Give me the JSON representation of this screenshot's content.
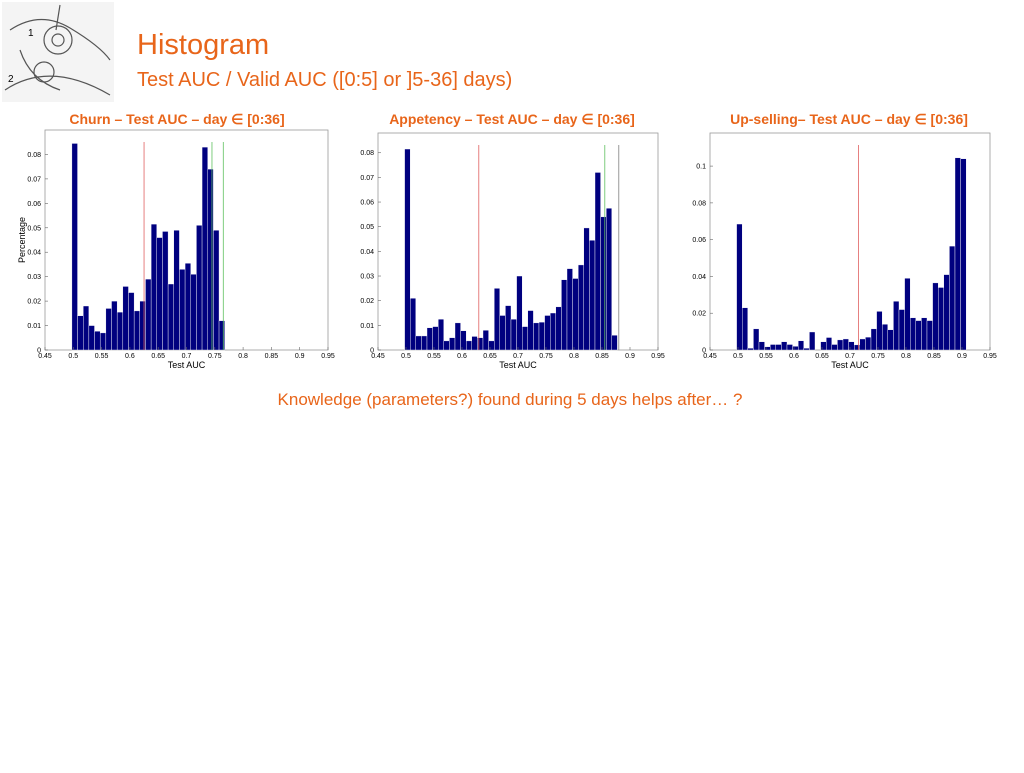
{
  "title": "Histogram",
  "subtitle": "Test AUC / Valid AUC ([0:5] or ]5-36] days)",
  "note": "Knowledge (parameters?) found during 5 days helps after… ?",
  "chart_data": [
    {
      "type": "histogram",
      "title": "Churn – Test AUC – day ∈ [0:36]",
      "x_label": "Test AUC",
      "y_label": "Percentage",
      "color": "#00007f",
      "bins": [
        0.4975,
        0.5075,
        0.5175,
        0.5275,
        0.5375,
        0.5475,
        0.5575,
        0.5675,
        0.5775,
        0.5875,
        0.5975,
        0.6075,
        0.6175,
        0.6275,
        0.6375,
        0.6475,
        0.6575,
        0.6675,
        0.6775,
        0.6875,
        0.6975,
        0.7075,
        0.7175,
        0.7275,
        0.7375,
        0.7475,
        0.7575,
        0.7675
      ],
      "values": [
        0.0845,
        0.014,
        0.018,
        0.01,
        0.0077,
        0.007,
        0.017,
        0.02,
        0.0155,
        0.026,
        0.0235,
        0.016,
        0.02,
        0.029,
        0.0515,
        0.046,
        0.0485,
        0.027,
        0.049,
        0.033,
        0.0355,
        0.031,
        0.051,
        0.083,
        0.074,
        0.049,
        0.012
      ],
      "xlim": [
        0.45,
        0.95
      ],
      "xticks": [
        0.45,
        0.5,
        0.55,
        0.6,
        0.65,
        0.7,
        0.75,
        0.8,
        0.85,
        0.9,
        0.95
      ],
      "ylim": [
        0,
        0.09
      ],
      "yticks": [
        0,
        0.01,
        0.02,
        0.03,
        0.04,
        0.05,
        0.06,
        0.07,
        0.08
      ],
      "reference_lines": [
        {
          "value": 0.625,
          "color": "#e06060"
        },
        {
          "value": 0.745,
          "color": "#60c060"
        },
        {
          "value": 0.765,
          "color": "#60c060"
        }
      ]
    },
    {
      "type": "histogram",
      "title": "Appetency – Test  AUC – day ∈ [0:36]",
      "x_label": "Test AUC",
      "color": "#00007f",
      "bins": [
        0.4975,
        0.5075,
        0.5175,
        0.5275,
        0.5375,
        0.5475,
        0.5575,
        0.5675,
        0.5775,
        0.5875,
        0.5975,
        0.6075,
        0.6175,
        0.6275,
        0.6375,
        0.6475,
        0.6575,
        0.6675,
        0.6775,
        0.6875,
        0.6975,
        0.7075,
        0.7175,
        0.7275,
        0.7375,
        0.7475,
        0.7575,
        0.7675,
        0.7775,
        0.7875,
        0.7975,
        0.8075,
        0.8175,
        0.8275,
        0.8375,
        0.8475,
        0.8575,
        0.8675,
        0.8775
      ],
      "values": [
        0.0815,
        0.021,
        0.0057,
        0.0057,
        0.009,
        0.0095,
        0.0125,
        0.0037,
        0.005,
        0.011,
        0.0078,
        0.0037,
        0.0055,
        0.005,
        0.008,
        0.0037,
        0.025,
        0.014,
        0.018,
        0.0125,
        0.03,
        0.0095,
        0.016,
        0.011,
        0.0113,
        0.014,
        0.015,
        0.0175,
        0.0285,
        0.033,
        0.029,
        0.0345,
        0.0495,
        0.0445,
        0.072,
        0.054,
        0.0575,
        0.006
      ],
      "xlim": [
        0.45,
        0.95
      ],
      "xticks": [
        0.45,
        0.5,
        0.55,
        0.6,
        0.65,
        0.7,
        0.75,
        0.8,
        0.85,
        0.9,
        0.95
      ],
      "ylim": [
        0,
        0.088
      ],
      "yticks": [
        0,
        0.01,
        0.02,
        0.03,
        0.04,
        0.05,
        0.06,
        0.07,
        0.08
      ],
      "reference_lines": [
        {
          "value": 0.63,
          "color": "#e06060"
        },
        {
          "value": 0.855,
          "color": "#60c060"
        },
        {
          "value": 0.88,
          "color": "#808080"
        }
      ]
    },
    {
      "type": "histogram",
      "title": "Up-selling– Test AUC – day ∈ [0:36]",
      "x_label": "Test AUC",
      "color": "#00007f",
      "bins": [
        0.4975,
        0.5075,
        0.5175,
        0.5275,
        0.5375,
        0.5475,
        0.5575,
        0.5675,
        0.5775,
        0.5875,
        0.5975,
        0.6075,
        0.6175,
        0.6275,
        0.6375,
        0.6475,
        0.6575,
        0.6675,
        0.6775,
        0.6875,
        0.6975,
        0.7075,
        0.7175,
        0.7275,
        0.7375,
        0.7475,
        0.7575,
        0.7675,
        0.7775,
        0.7875,
        0.7975,
        0.8075,
        0.8175,
        0.8275,
        0.8375,
        0.8475,
        0.8575,
        0.8675,
        0.8775,
        0.8875,
        0.8975,
        0.9075
      ],
      "values": [
        0.0685,
        0.023,
        0.001,
        0.0115,
        0.0045,
        0.0018,
        0.003,
        0.003,
        0.0045,
        0.003,
        0.002,
        0.005,
        0.001,
        0.0098,
        0,
        0.0045,
        0.0068,
        0.003,
        0.0055,
        0.006,
        0.0045,
        0.0028,
        0.006,
        0.007,
        0.0115,
        0.021,
        0.014,
        0.011,
        0.0265,
        0.022,
        0.039,
        0.0175,
        0.016,
        0.0175,
        0.016,
        0.0365,
        0.034,
        0.041,
        0.0565,
        0.1045,
        0.104
      ],
      "xlim": [
        0.45,
        0.95
      ],
      "xticks": [
        0.45,
        0.5,
        0.55,
        0.6,
        0.65,
        0.7,
        0.75,
        0.8,
        0.85,
        0.9,
        0.95
      ],
      "ylim": [
        0,
        0.118
      ],
      "yticks": [
        0,
        0.02,
        0.04,
        0.06,
        0.08,
        0.1
      ],
      "reference_lines": [
        {
          "value": 0.715,
          "color": "#e06060"
        }
      ]
    }
  ]
}
